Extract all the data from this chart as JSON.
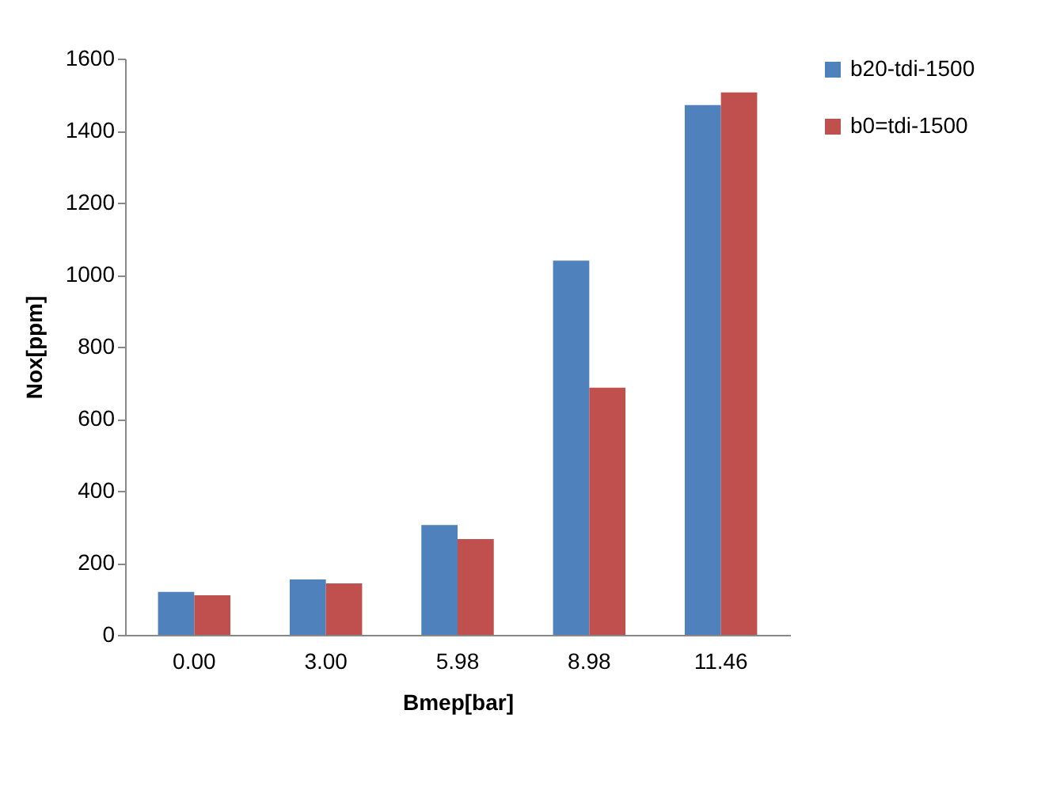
{
  "chart_data": {
    "type": "bar",
    "xlabel": "Bmep[bar]",
    "ylabel": "Nox[ppm]",
    "categories": [
      "0.00",
      "3.00",
      "5.98",
      "8.98",
      "11.46"
    ],
    "series": [
      {
        "name": "b20-tdi-1500",
        "color": "#4f81bd",
        "values": [
          119,
          154,
          305,
          1039,
          1471
        ]
      },
      {
        "name": "b0=tdi-1500",
        "color": "#c0504d",
        "values": [
          110,
          143,
          266,
          686,
          1506
        ]
      }
    ],
    "ylim": [
      0,
      1600
    ],
    "yticks": [
      0,
      200,
      400,
      600,
      800,
      1000,
      1200,
      1400,
      1600
    ],
    "grid": false,
    "legend": "right"
  }
}
